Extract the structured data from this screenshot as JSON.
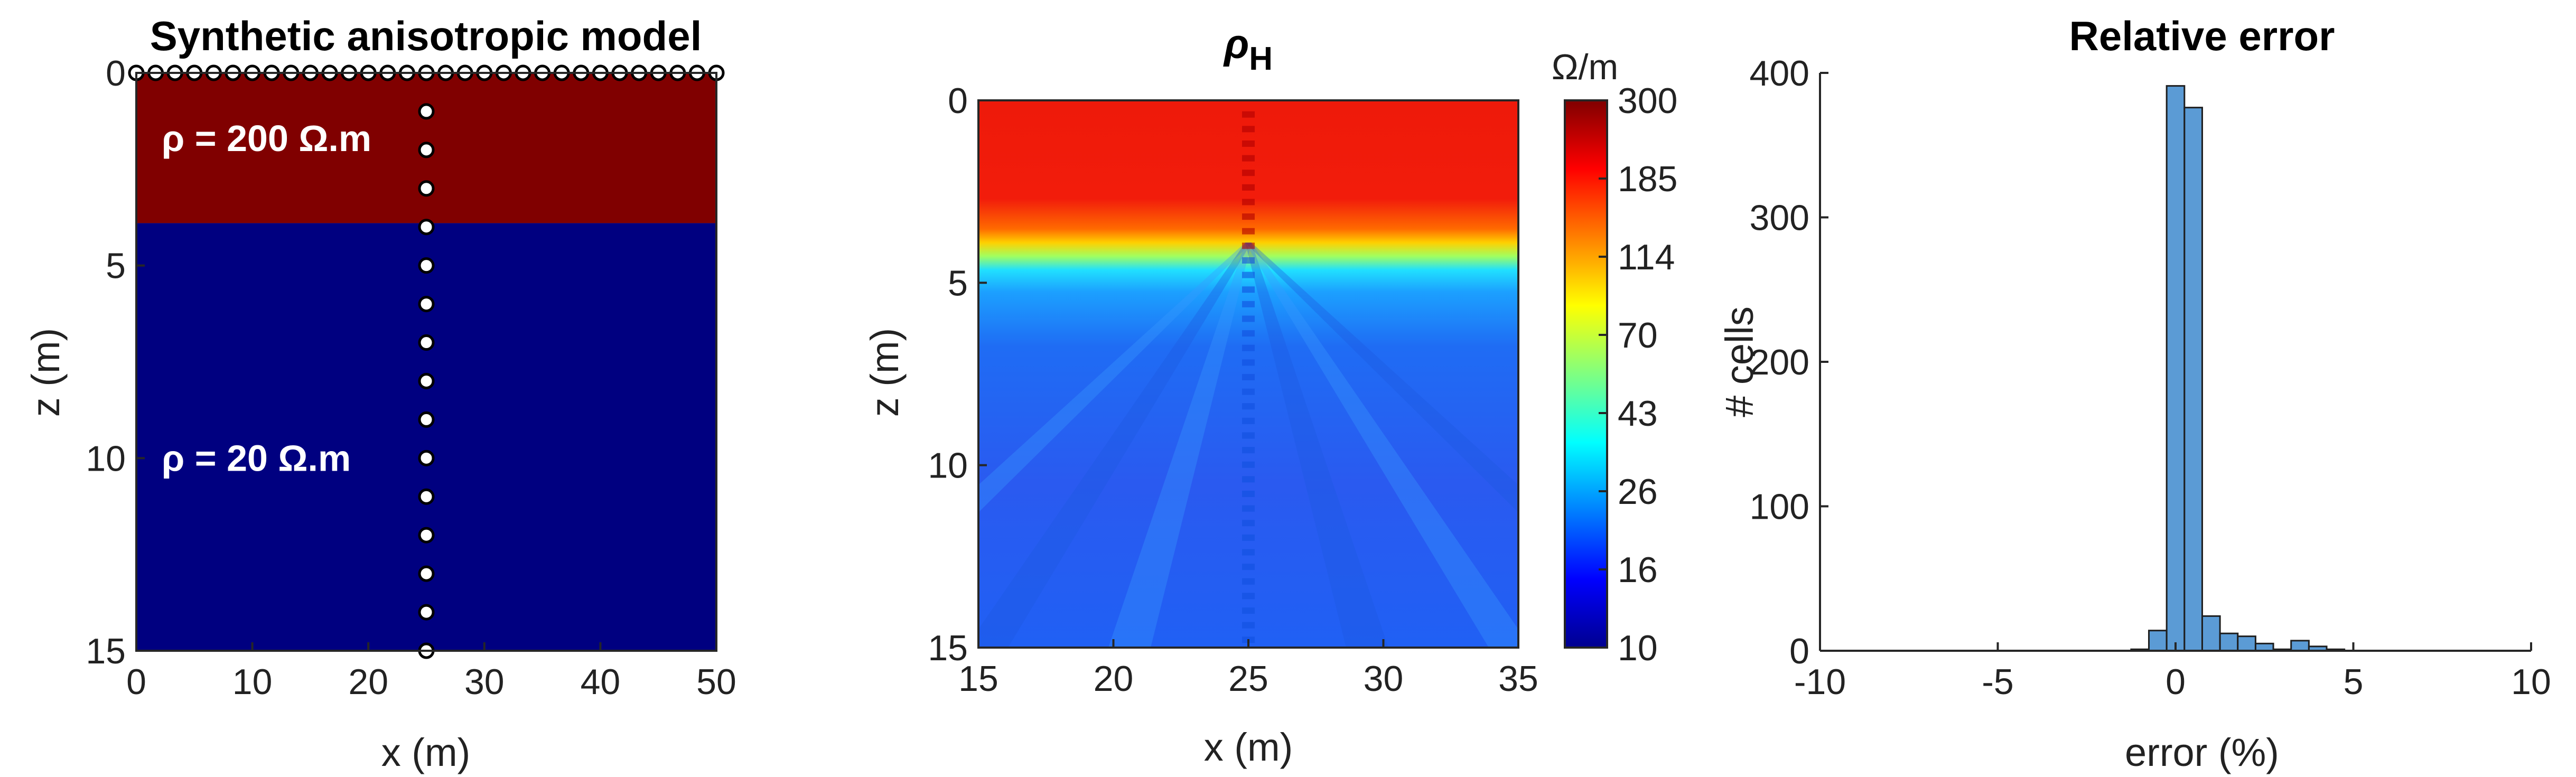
{
  "chart_data": [
    {
      "type": "heatmap",
      "title": "Synthetic anisotropic model",
      "xlabel": "x (m)",
      "ylabel": "z (m)",
      "xlim": [
        0,
        50
      ],
      "ylim": [
        0,
        15
      ],
      "y_reversed": true,
      "x_ticks": [
        "0",
        "10",
        "20",
        "30",
        "40",
        "50"
      ],
      "y_ticks": [
        "0",
        "5",
        "10",
        "15"
      ],
      "layers": [
        {
          "z_top": 0,
          "z_bottom": 3.9,
          "color": "#800000",
          "label": "ρ = 200 Ω.m",
          "label_z": 1.7
        },
        {
          "z_top": 3.9,
          "z_bottom": 15,
          "color": "#000080",
          "label": "ρ = 20 Ω.m",
          "label_z": 10.0
        }
      ],
      "surface_electrodes": {
        "z": 0,
        "x_start": 0,
        "x_end": 50,
        "count": 31
      },
      "borehole_electrodes": {
        "x": 25,
        "z_start": 0,
        "z_end": 15,
        "count": 16
      },
      "grid": false
    },
    {
      "type": "heatmap",
      "title": "ρ",
      "title_subscript": "H",
      "xlabel": "x (m)",
      "ylabel": "z (m)",
      "xlim": [
        15,
        35
      ],
      "ylim": [
        0,
        15
      ],
      "y_reversed": true,
      "x_ticks": [
        "15",
        "20",
        "25",
        "30",
        "35"
      ],
      "y_ticks": [
        "0",
        "5",
        "10",
        "15"
      ],
      "colormap": "jet",
      "colorbar": {
        "label": "Ω/m",
        "scale": "log",
        "range": [
          10,
          300
        ],
        "ticks": [
          "300",
          "185",
          "114",
          "70",
          "43",
          "26",
          "16",
          "10"
        ]
      },
      "interface_z": 3.9,
      "upper_value": 220,
      "lower_value": 18,
      "grid": false
    },
    {
      "type": "bar",
      "title": "Relative error",
      "xlabel": "error (%)",
      "ylabel": "# cells",
      "xlim": [
        -10,
        10
      ],
      "ylim": [
        0,
        400
      ],
      "x_ticks": [
        "-10",
        "-5",
        "0",
        "5",
        "10"
      ],
      "y_ticks": [
        "0",
        "100",
        "200",
        "300",
        "400"
      ],
      "bar_color": "#5b9bd5",
      "bin_width": 0.5,
      "bins": [
        {
          "x": -1.0,
          "value": 1
        },
        {
          "x": -0.5,
          "value": 14
        },
        {
          "x": 0.0,
          "value": 391
        },
        {
          "x": 0.5,
          "value": 376
        },
        {
          "x": 1.0,
          "value": 24
        },
        {
          "x": 1.5,
          "value": 12
        },
        {
          "x": 2.0,
          "value": 10
        },
        {
          "x": 2.5,
          "value": 5
        },
        {
          "x": 3.0,
          "value": 1
        },
        {
          "x": 3.5,
          "value": 7
        },
        {
          "x": 4.0,
          "value": 3
        },
        {
          "x": 4.5,
          "value": 1
        }
      ],
      "grid": false
    }
  ]
}
